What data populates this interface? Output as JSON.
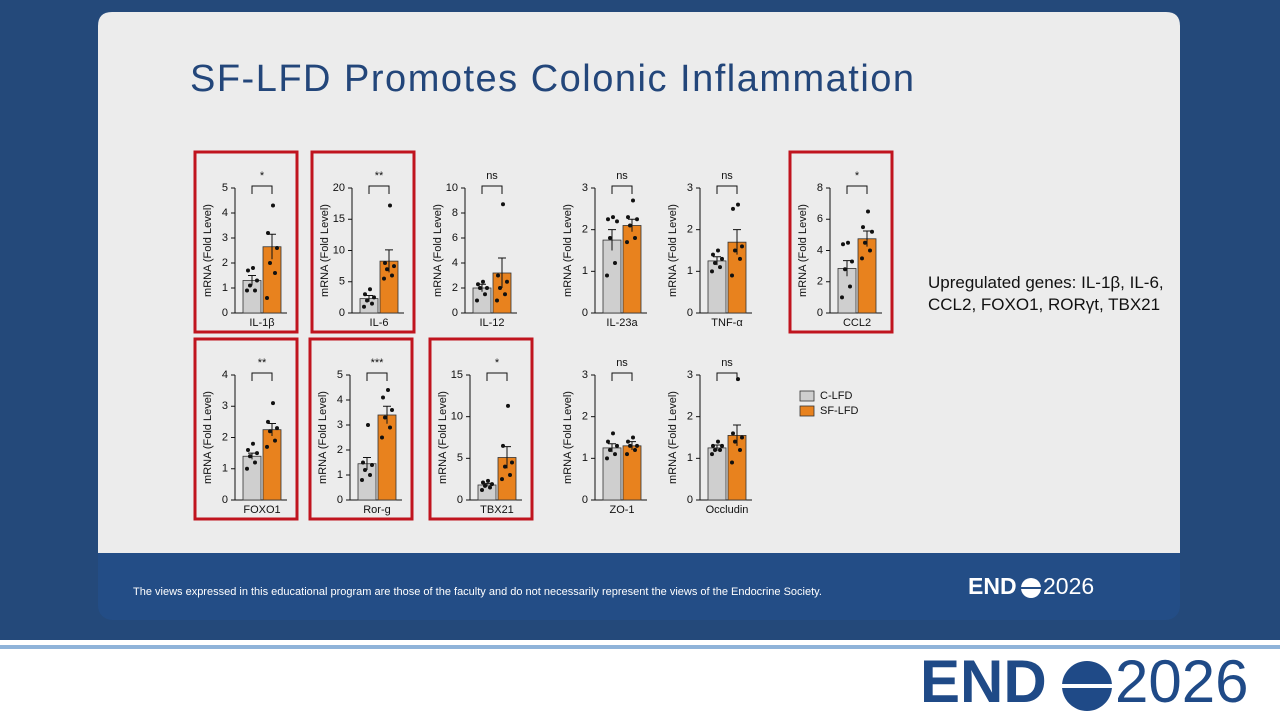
{
  "slide": {
    "title": "SF-LFD Promotes Colonic Inflammation",
    "note": "Upregulated genes: IL-1β, IL-6, CCL2, FOXO1, RORγt, TBX21",
    "footer": "The views expressed in this educational program are those of the faculty and do not necessarily represent the views of the Endocrine Society.",
    "logo": {
      "bold": "END",
      "light": "2026"
    }
  },
  "legend": [
    {
      "name": "C-LFD",
      "color": "#cfcfcf"
    },
    {
      "name": "SF-LFD",
      "color": "#e8821e"
    }
  ],
  "chart_data": [
    {
      "type": "bar",
      "x_label": "IL-1β",
      "y_label": "mRNA (Fold Level)",
      "highlight": true,
      "significance": "*",
      "ylim": [
        0,
        5
      ],
      "yticks": [
        0,
        1,
        2,
        3,
        4,
        5
      ],
      "values": [
        1.3,
        2.65
      ],
      "errors": [
        0.2,
        0.5
      ],
      "points": [
        [
          0.9,
          0.9,
          1.1,
          1.3,
          1.7,
          1.8
        ],
        [
          0.6,
          1.6,
          2.0,
          2.6,
          3.2,
          4.3
        ]
      ]
    },
    {
      "type": "bar",
      "x_label": "IL-6",
      "y_label": "mRNA (Fold Level)",
      "highlight": true,
      "significance": "**",
      "ylim": [
        0,
        20
      ],
      "yticks": [
        0,
        5,
        10,
        15,
        20
      ],
      "values": [
        2.3,
        8.3
      ],
      "errors": [
        0.5,
        1.8
      ],
      "points": [
        [
          1,
          1.5,
          2,
          2.5,
          3,
          3.8
        ],
        [
          5.5,
          6,
          7,
          7.5,
          8,
          17.2
        ]
      ]
    },
    {
      "type": "bar",
      "x_label": "IL-12",
      "y_label": "mRNA (Fold Level)",
      "highlight": false,
      "significance": "ns",
      "ylim": [
        0,
        10
      ],
      "yticks": [
        0,
        2,
        4,
        6,
        8,
        10
      ],
      "values": [
        2.0,
        3.2
      ],
      "errors": [
        0.3,
        1.2
      ],
      "points": [
        [
          1,
          1.5,
          2,
          2,
          2.3,
          2.5
        ],
        [
          1,
          1.5,
          2,
          2.5,
          3,
          8.7
        ]
      ]
    },
    {
      "type": "bar",
      "x_label": "IL-23a",
      "y_label": "mRNA (Fold Level)",
      "highlight": false,
      "significance": "ns",
      "ylim": [
        0,
        3
      ],
      "yticks": [
        0,
        1,
        2,
        3
      ],
      "values": [
        1.75,
        2.1
      ],
      "errors": [
        0.25,
        0.15
      ],
      "points": [
        [
          0.9,
          1.2,
          1.8,
          2.2,
          2.25,
          2.3
        ],
        [
          1.7,
          1.8,
          2.1,
          2.25,
          2.3,
          2.7
        ]
      ]
    },
    {
      "type": "bar",
      "x_label": "TNF-α",
      "y_label": "mRNA (Fold Level)",
      "highlight": false,
      "significance": "ns",
      "ylim": [
        0,
        3
      ],
      "yticks": [
        0,
        1,
        2,
        3
      ],
      "values": [
        1.25,
        1.7
      ],
      "errors": [
        0.1,
        0.3
      ],
      "points": [
        [
          1.0,
          1.1,
          1.2,
          1.3,
          1.4,
          1.5
        ],
        [
          0.9,
          1.3,
          1.5,
          1.6,
          2.5,
          2.6
        ]
      ]
    },
    {
      "type": "bar",
      "x_label": "CCL2",
      "y_label": "mRNA (Fold Level)",
      "highlight": true,
      "significance": "*",
      "ylim": [
        0,
        8
      ],
      "yticks": [
        0,
        2,
        4,
        6,
        8
      ],
      "values": [
        2.85,
        4.75
      ],
      "errors": [
        0.5,
        0.5
      ],
      "points": [
        [
          1,
          1.7,
          2.8,
          3.3,
          4.4,
          4.5
        ],
        [
          3.5,
          4,
          4.5,
          5.2,
          5.5,
          6.5
        ]
      ]
    },
    {
      "type": "bar",
      "x_label": "FOXO1",
      "y_label": "mRNA (Fold Level)",
      "highlight": true,
      "significance": "**",
      "ylim": [
        0,
        4
      ],
      "yticks": [
        0,
        1,
        2,
        3,
        4
      ],
      "values": [
        1.4,
        2.25
      ],
      "errors": [
        0.1,
        0.2
      ],
      "points": [
        [
          1.0,
          1.2,
          1.4,
          1.5,
          1.6,
          1.8
        ],
        [
          1.7,
          1.9,
          2.2,
          2.3,
          2.5,
          3.1
        ]
      ]
    },
    {
      "type": "bar",
      "x_label": "Ror-g",
      "y_label": "mRNA (Fold Level)",
      "highlight": true,
      "significance": "***",
      "ylim": [
        0,
        5
      ],
      "yticks": [
        0,
        1,
        2,
        3,
        4,
        5
      ],
      "values": [
        1.45,
        3.4
      ],
      "errors": [
        0.25,
        0.35
      ],
      "points": [
        [
          0.8,
          1,
          1.2,
          1.4,
          1.5,
          3
        ],
        [
          2.5,
          2.9,
          3.3,
          3.6,
          4.1,
          4.4
        ]
      ]
    },
    {
      "type": "bar",
      "x_label": "TBX21",
      "y_label": "mRNA (Fold Level)",
      "highlight": true,
      "significance": "*",
      "ylim": [
        0,
        15
      ],
      "yticks": [
        0,
        5,
        10,
        15
      ],
      "values": [
        1.8,
        5.1
      ],
      "errors": [
        0.2,
        1.3
      ],
      "points": [
        [
          1.2,
          1.5,
          1.7,
          1.9,
          2.1,
          2.3
        ],
        [
          2.5,
          3,
          4,
          4.5,
          6.5,
          11.3
        ]
      ]
    },
    {
      "type": "bar",
      "x_label": "ZO-1",
      "y_label": "mRNA (Fold Level)",
      "highlight": false,
      "significance": "ns",
      "ylim": [
        0,
        3
      ],
      "yticks": [
        0,
        1,
        2,
        3
      ],
      "values": [
        1.25,
        1.3
      ],
      "errors": [
        0.1,
        0.1
      ],
      "points": [
        [
          1.0,
          1.1,
          1.2,
          1.3,
          1.4,
          1.6
        ],
        [
          1.1,
          1.2,
          1.3,
          1.3,
          1.4,
          1.5
        ]
      ]
    },
    {
      "type": "bar",
      "x_label": "Occludin",
      "y_label": "mRNA (Fold Level)",
      "highlight": false,
      "significance": "ns",
      "ylim": [
        0,
        3
      ],
      "yticks": [
        0,
        1,
        2,
        3
      ],
      "values": [
        1.25,
        1.55
      ],
      "errors": [
        0.07,
        0.25
      ],
      "points": [
        [
          1.1,
          1.2,
          1.2,
          1.3,
          1.3,
          1.4
        ],
        [
          0.9,
          1.2,
          1.4,
          1.5,
          1.6,
          2.9
        ]
      ]
    }
  ]
}
